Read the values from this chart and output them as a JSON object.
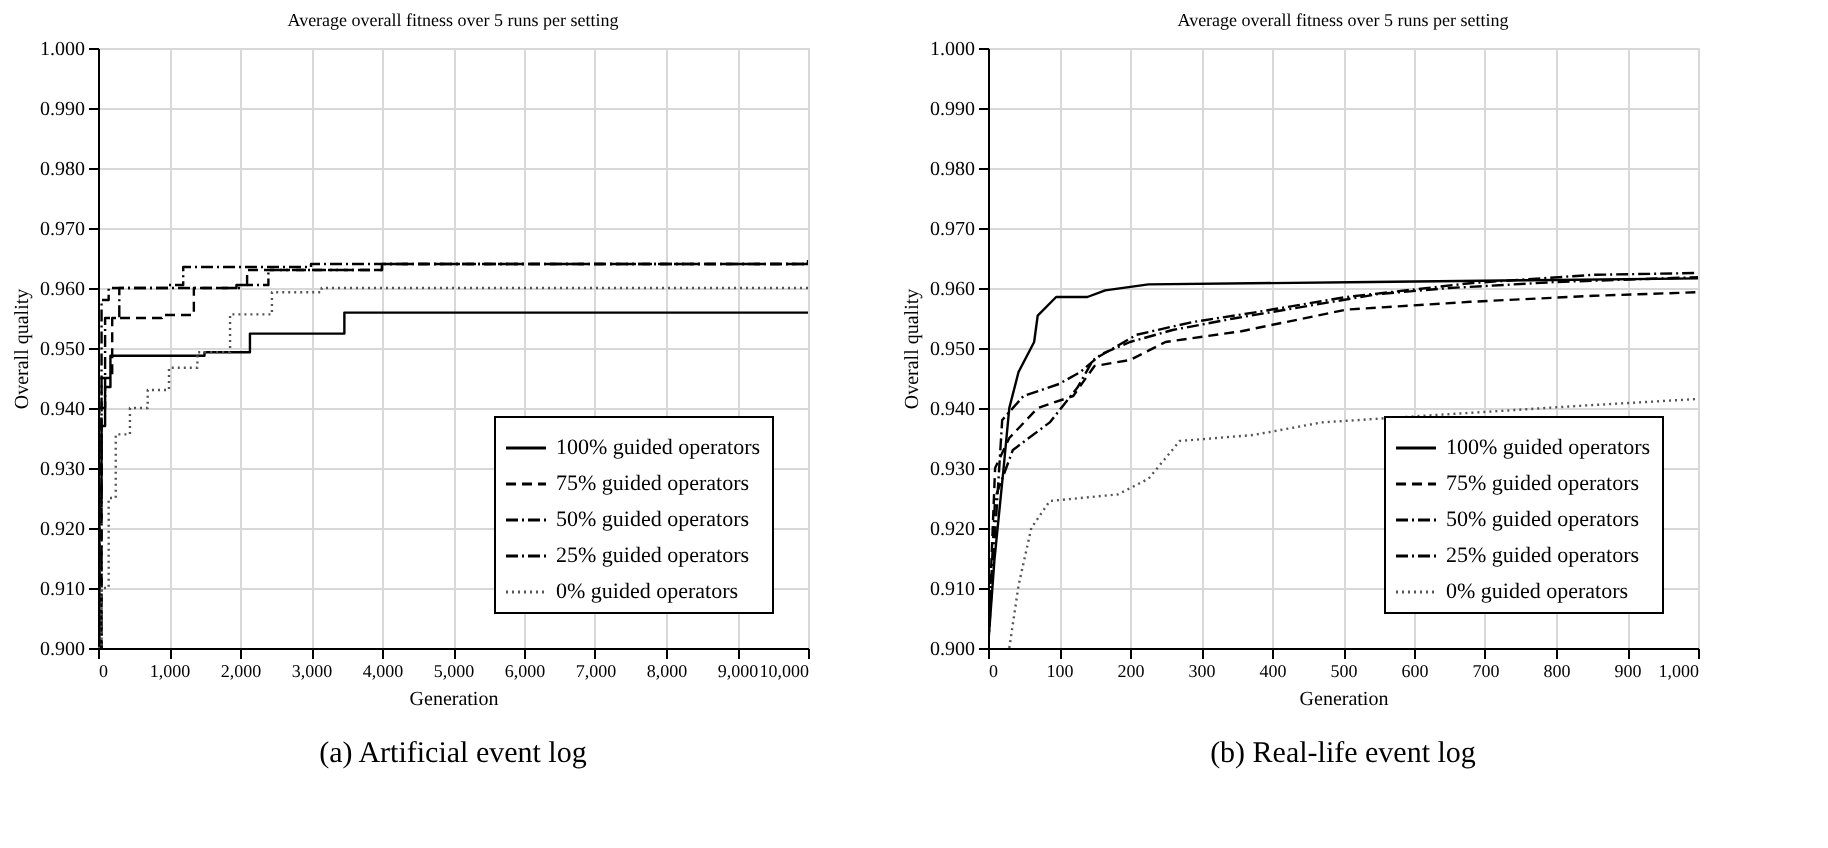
{
  "chart_data": [
    {
      "type": "step",
      "title": "Average overall fitness over 5 runs per setting",
      "xlabel": "Generation",
      "ylabel": "Overall quality",
      "xlim": [
        0,
        10000
      ],
      "ylim": [
        0.9,
        1.0
      ],
      "xticks": [
        0,
        {
          "value": 1000,
          "label": "1,000"
        },
        {
          "value": 2000,
          "label": "2,000"
        },
        {
          "value": 3000,
          "label": "3,000"
        },
        {
          "value": 4000,
          "label": "4,000"
        },
        {
          "value": 5000,
          "label": "5,000"
        },
        {
          "value": 6000,
          "label": "6,000"
        },
        {
          "value": 7000,
          "label": "7,000"
        },
        {
          "value": 8000,
          "label": "8,000"
        },
        {
          "value": 9000,
          "label": "9,000"
        },
        {
          "value": 10000,
          "label": "10,000"
        }
      ],
      "yticks": [
        {
          "value": 0.9,
          "label": "0.900"
        },
        {
          "value": 0.91,
          "label": "0.910"
        },
        {
          "value": 0.92,
          "label": "0.920"
        },
        {
          "value": 0.93,
          "label": "0.930"
        },
        {
          "value": 0.94,
          "label": "0.940"
        },
        {
          "value": 0.95,
          "label": "0.950"
        },
        {
          "value": 0.96,
          "label": "0.960"
        },
        {
          "value": 0.97,
          "label": "0.970"
        },
        {
          "value": 0.98,
          "label": "0.980"
        },
        {
          "value": 0.99,
          "label": "0.990"
        },
        {
          "value": 1.0,
          "label": "1.000"
        }
      ],
      "grid": true,
      "legend": "bottom right",
      "annotations": [
        "(a) Artificial event log"
      ],
      "series": [
        {
          "name": "100% guided operators",
          "color": "#000000",
          "line_style": "solid",
          "x": [
            0,
            20,
            50,
            100,
            175,
            1500,
            2140,
            3470,
            10000
          ],
          "values": [
            0.9,
            0.925,
            0.937,
            0.9435,
            0.9487,
            0.9493,
            0.9524,
            0.9559,
            0.9559
          ]
        },
        {
          "name": "75% guided operators",
          "color": "#000000",
          "line_style": "dashed",
          "x": [
            0,
            50,
            200,
            900,
            1350,
            1950,
            2100,
            4000,
            10000
          ],
          "values": [
            0.9,
            0.945,
            0.955,
            0.9555,
            0.96,
            0.9605,
            0.963,
            0.964,
            0.9648
          ]
        },
        {
          "name": "50% guided operators",
          "color": "#000000",
          "line_style": "dashdot",
          "x": [
            0,
            50,
            150,
            2000,
            2400,
            4000,
            10000
          ],
          "values": [
            0.9,
            0.958,
            0.96,
            0.9605,
            0.963,
            0.964,
            0.965
          ]
        },
        {
          "name": "25% guided operators",
          "color": "#000000",
          "line_style": "dashdot",
          "x": [
            0,
            20,
            100,
            300,
            1000,
            1200,
            3000,
            10000
          ],
          "values": [
            0.9,
            0.94,
            0.955,
            0.96,
            0.9605,
            0.9635,
            0.964,
            0.9645
          ]
        },
        {
          "name": "0% guided operators",
          "color": "#555555",
          "line_style": "dotted",
          "x": [
            0,
            50,
            150,
            250,
            450,
            700,
            1000,
            1400,
            1860,
            2450,
            3150,
            10000
          ],
          "values": [
            0.9,
            0.91,
            0.925,
            0.9356,
            0.94,
            0.943,
            0.9467,
            0.9493,
            0.9556,
            0.9593,
            0.96,
            0.96
          ]
        }
      ]
    },
    {
      "type": "line",
      "title": "Average overall fitness over 5 runs per setting",
      "xlabel": "Generation",
      "ylabel": "Overall quality",
      "xlim": [
        0,
        1000
      ],
      "ylim": [
        0.9,
        1.0
      ],
      "xticks": [
        0,
        100,
        200,
        300,
        400,
        500,
        600,
        700,
        800,
        900,
        {
          "value": 1000,
          "label": "1,000"
        }
      ],
      "yticks": [
        {
          "value": 0.9,
          "label": "0.900"
        },
        {
          "value": 0.91,
          "label": "0.910"
        },
        {
          "value": 0.92,
          "label": "0.920"
        },
        {
          "value": 0.93,
          "label": "0.930"
        },
        {
          "value": 0.94,
          "label": "0.940"
        },
        {
          "value": 0.95,
          "label": "0.950"
        },
        {
          "value": 0.96,
          "label": "0.960"
        },
        {
          "value": 0.97,
          "label": "0.970"
        },
        {
          "value": 0.98,
          "label": "0.980"
        },
        {
          "value": 0.99,
          "label": "0.990"
        },
        {
          "value": 1.0,
          "label": "1.000"
        }
      ],
      "grid": true,
      "legend": "bottom right",
      "annotations": [
        "(b) Real-life event log"
      ],
      "series": [
        {
          "name": "100% guided operators",
          "color": "#000000",
          "line_style": "solid",
          "x": [
            0,
            9,
            22,
            30,
            43,
            65,
            70,
            96,
            140,
            165,
            226,
            540,
            766,
            1000
          ],
          "values": [
            0.9,
            0.9146,
            0.93,
            0.94,
            0.946,
            0.951,
            0.9554,
            0.9585,
            0.9585,
            0.9596,
            0.9606,
            0.961,
            0.9613,
            0.9616
          ]
        },
        {
          "name": "75% guided operators",
          "color": "#000000",
          "line_style": "dashed",
          "x": [
            0,
            10,
            30,
            70,
            120,
            150,
            200,
            250,
            357,
            505,
            679,
            853,
            1000
          ],
          "values": [
            0.9,
            0.93,
            0.935,
            0.94,
            0.942,
            0.947,
            0.948,
            0.951,
            0.9528,
            0.9564,
            0.9577,
            0.9587,
            0.9593
          ]
        },
        {
          "name": "50% guided operators",
          "color": "#000000",
          "line_style": "dashdot",
          "x": [
            0,
            10,
            35,
            87,
            126,
            148,
            209,
            287,
            374,
            505,
            679,
            853,
            1000
          ],
          "values": [
            0.9,
            0.925,
            0.933,
            0.9376,
            0.9434,
            0.948,
            0.9522,
            0.9543,
            0.9559,
            0.9585,
            0.9608,
            0.9622,
            0.9625
          ]
        },
        {
          "name": "25% guided operators",
          "color": "#000000",
          "line_style": "dashdot",
          "x": [
            0,
            20,
            50,
            100,
            130,
            160,
            200,
            260,
            350,
            450,
            550,
            650,
            800,
            1000
          ],
          "values": [
            0.9,
            0.938,
            0.942,
            0.944,
            0.946,
            0.949,
            0.951,
            0.953,
            0.955,
            0.957,
            0.959,
            0.96,
            0.961,
            0.9618
          ]
        },
        {
          "name": "0% guided operators",
          "color": "#555555",
          "line_style": "dotted",
          "x": [
            30,
            43,
            61,
            87,
            183,
            226,
            270,
            374,
            470,
            679,
            853,
            1000
          ],
          "values": [
            0.9,
            0.9104,
            0.92,
            0.9245,
            0.9256,
            0.9282,
            0.9345,
            0.9355,
            0.9376,
            0.9392,
            0.9405,
            0.9415
          ]
        }
      ]
    }
  ]
}
